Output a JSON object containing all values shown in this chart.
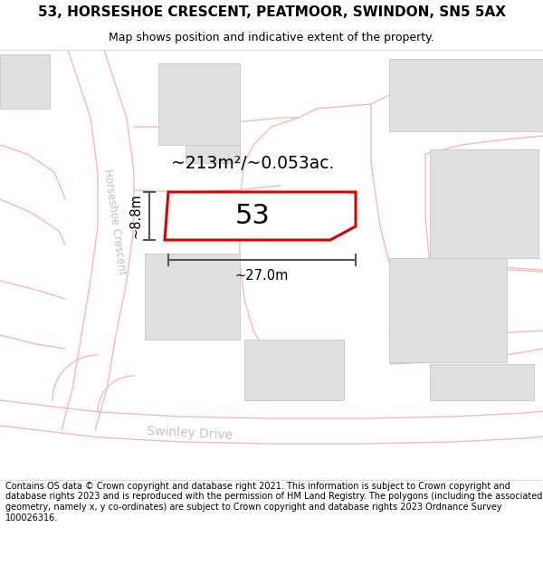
{
  "title_line1": "53, HORSESHOE CRESCENT, PEATMOOR, SWINDON, SN5 5AX",
  "title_line2": "Map shows position and indicative extent of the property.",
  "footer_text": "Contains OS data © Crown copyright and database right 2021. This information is subject to Crown copyright and database rights 2023 and is reproduced with the permission of HM Land Registry. The polygons (including the associated geometry, namely x, y co-ordinates) are subject to Crown copyright and database rights 2023 Ordnance Survey 100026316.",
  "bg_color": "#ffffff",
  "road_line_color": "#f5b8b8",
  "building_fill": "#e0e0e0",
  "building_edge": "#cccccc",
  "highlight_fill": "#ffffff",
  "highlight_edge": "#dd0000",
  "road_label_color": "#c0c0c0",
  "area_label": "~213m²/~0.053ac.",
  "number_label": "53",
  "width_label": "~27.0m",
  "height_label": "~8.8m",
  "title_fontsize": 11,
  "subtitle_fontsize": 9,
  "footer_fontsize": 7
}
